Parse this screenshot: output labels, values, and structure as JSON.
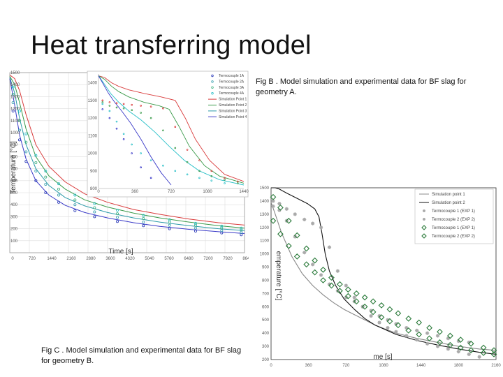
{
  "slide": {
    "title": "Heat transferring model",
    "caption_b": "Fig B . Model simulation and experimental data for BF slag for geometry A.",
    "caption_c": "Fig C . Model simulation and experimental data for BF slag for geometry B."
  },
  "chart_data": [
    {
      "id": "fig-c-geometry-b",
      "type": "line",
      "title": "",
      "xlabel": "Time [s]",
      "ylabel": "Temperature [°C]",
      "xlim": [
        0,
        7200
      ],
      "ylim": [
        0,
        1500
      ],
      "xticks": [
        "0",
        "720",
        "1440",
        "2160",
        "2880",
        "3600",
        "4320",
        "5040",
        "5760",
        "6480",
        "7200",
        "7920",
        "8640"
      ],
      "yticks": [
        "100",
        "200",
        "300",
        "400",
        "500",
        "600",
        "700",
        "800",
        "900",
        "1000",
        "1100",
        "1200",
        "1300",
        "1400",
        "1500"
      ],
      "grid": true,
      "legend_position": "top-right",
      "series": [
        {
          "name": "Simulation Point 1",
          "color": "#d93b3b",
          "style": "line",
          "x": [
            0,
            150,
            300,
            500,
            800,
            1200,
            1700,
            2300,
            3000,
            3800,
            4600,
            5500,
            6400,
            7200
          ],
          "y": [
            1480,
            1450,
            1350,
            1150,
            900,
            720,
            590,
            490,
            420,
            360,
            320,
            280,
            250,
            230
          ]
        },
        {
          "name": "Simulation Point 2",
          "color": "#3a9a4a",
          "style": "line",
          "x": [
            0,
            150,
            300,
            500,
            800,
            1200,
            1700,
            2300,
            3000,
            3800,
            4600,
            5500,
            6400,
            7200
          ],
          "y": [
            1470,
            1400,
            1250,
            1030,
            800,
            640,
            530,
            440,
            380,
            330,
            290,
            255,
            225,
            205
          ]
        },
        {
          "name": "Simulation Point 3",
          "color": "#2a9aa8",
          "style": "line",
          "x": [
            0,
            150,
            300,
            500,
            800,
            1200,
            1700,
            2300,
            3000,
            3800,
            4600,
            5500,
            6400,
            7200
          ],
          "y": [
            1460,
            1330,
            1120,
            900,
            700,
            560,
            460,
            390,
            335,
            290,
            255,
            225,
            200,
            185
          ]
        },
        {
          "name": "Simulation Point 4",
          "color": "#3a3ac8",
          "style": "line",
          "x": [
            0,
            150,
            300,
            500,
            800,
            1200,
            1700,
            2300,
            3000,
            3800,
            4600,
            5500,
            6400,
            7200
          ],
          "y": [
            1450,
            1230,
            980,
            780,
            600,
            480,
            395,
            335,
            290,
            250,
            220,
            195,
            175,
            160
          ]
        },
        {
          "name": "Termocouple 1A",
          "color": "#2a3ab8",
          "style": "marker",
          "x": [
            100,
            300,
            500,
            800,
            1100,
            1500,
            2000,
            2600,
            3300,
            4100,
            4900,
            5700,
            6500,
            7100
          ],
          "y": [
            1180,
            940,
            760,
            600,
            500,
            420,
            350,
            300,
            260,
            225,
            200,
            180,
            165,
            150
          ]
        },
        {
          "name": "Termocouple 2A",
          "color": "#3aa0b0",
          "style": "marker",
          "x": [
            100,
            300,
            500,
            800,
            1100,
            1500,
            2000,
            2600,
            3300,
            4100,
            4900,
            5700,
            6500,
            7100
          ],
          "y": [
            1250,
            1020,
            840,
            680,
            570,
            480,
            400,
            340,
            295,
            255,
            228,
            205,
            185,
            170
          ]
        },
        {
          "name": "Termocouple 3A",
          "color": "#40b080",
          "style": "marker",
          "x": [
            100,
            300,
            500,
            800,
            1100,
            1500,
            2000,
            2600,
            3300,
            4100,
            4900,
            5700,
            6500,
            7100
          ],
          "y": [
            1320,
            1100,
            920,
            750,
            630,
            530,
            440,
            375,
            325,
            285,
            255,
            230,
            208,
            190
          ]
        },
        {
          "name": "Termocouple 4A",
          "color": "#2ac0c8",
          "style": "marker",
          "x": [
            100,
            300,
            500,
            800,
            1100,
            1500,
            2000,
            2600,
            3300,
            4100,
            4900,
            5700,
            6500,
            7100
          ],
          "y": [
            1380,
            1180,
            990,
            810,
            680,
            575,
            480,
            410,
            355,
            310,
            275,
            245,
            222,
            205
          ]
        }
      ],
      "inset": {
        "xlim": [
          0,
          1440
        ],
        "ylim": [
          800,
          1450
        ],
        "xticks": [
          "0",
          "360",
          "720",
          "1080",
          "1440"
        ],
        "yticks": [
          "800",
          "900",
          "1000",
          "1100",
          "1200",
          "1300",
          "1400"
        ],
        "series": [
          {
            "name": "Simulation Point 1",
            "color": "#d93b3b",
            "x": [
              0,
              60,
              130,
              200,
              300,
              450,
              620,
              760,
              860,
              960,
              1100,
              1250,
              1440
            ],
            "y": [
              1440,
              1430,
              1400,
              1380,
              1360,
              1340,
              1320,
              1300,
              1200,
              1080,
              960,
              880,
              840
            ]
          },
          {
            "name": "Simulation Point 2",
            "color": "#3a9a4a",
            "x": [
              0,
              60,
              130,
              200,
              300,
              450,
              600,
              700,
              800,
              900,
              1050,
              1200,
              1440
            ],
            "y": [
              1440,
              1420,
              1380,
              1350,
              1320,
              1290,
              1270,
              1250,
              1150,
              1040,
              930,
              870,
              830
            ]
          },
          {
            "name": "Simulation Point 3",
            "color": "#2ac0c8",
            "x": [
              0,
              50,
              120,
              200,
              300,
              420,
              560,
              700,
              850,
              1000,
              1200,
              1440
            ],
            "y": [
              1440,
              1400,
              1340,
              1290,
              1240,
              1190,
              1120,
              1040,
              960,
              900,
              850,
              820
            ]
          },
          {
            "name": "Simulation Point 4",
            "color": "#3a3ac8",
            "x": [
              0,
              40,
              100,
              160,
              230,
              320,
              420,
              520,
              620,
              720
            ],
            "y": [
              1440,
              1400,
              1340,
              1290,
              1240,
              1170,
              1080,
              980,
              890,
              820
            ]
          },
          {
            "name": "Termocouple 1A",
            "color": "#d93b3b",
            "marker": true,
            "x": [
              40,
              110,
              180,
              250,
              330,
              420,
              520,
              640,
              760,
              880,
              1000,
              1120,
              1250,
              1380
            ],
            "y": [
              1300,
              1290,
              1285,
              1280,
              1275,
              1270,
              1265,
              1255,
              1150,
              1020,
              960,
              900,
              860,
              840
            ]
          },
          {
            "name": "Termocouple 2A",
            "color": "#3a9a4a",
            "marker": true,
            "x": [
              40,
              110,
              180,
              250,
              330,
              420,
              520,
              640,
              760,
              880,
              1000,
              1120,
              1250,
              1380
            ],
            "y": [
              1290,
              1270,
              1260,
              1255,
              1245,
              1230,
              1200,
              1130,
              1030,
              950,
              900,
              870,
              850,
              830
            ]
          },
          {
            "name": "Termocouple 3A",
            "color": "#2ac0c8",
            "marker": true,
            "x": [
              40,
              110,
              180,
              250,
              330,
              420,
              520,
              640,
              760,
              880,
              1000,
              1120,
              1250
            ],
            "y": [
              1280,
              1240,
              1180,
              1110,
              1050,
              1000,
              960,
              930,
              900,
              880,
              860,
              845,
              830
            ]
          },
          {
            "name": "Termocouple 4A",
            "color": "#3a3ac8",
            "marker": true,
            "x": [
              40,
              110,
              180,
              250,
              330,
              420,
              520
            ],
            "y": [
              1250,
              1200,
              1140,
              1080,
              1000,
              920,
              860
            ]
          }
        ]
      }
    },
    {
      "id": "fig-b-geometry-a",
      "type": "line",
      "title": "",
      "xlabel": "me [s]",
      "ylabel": "emperature [°C]",
      "xlim": [
        0,
        2160
      ],
      "ylim": [
        200,
        1500
      ],
      "xticks": [
        "0",
        "360",
        "720",
        "1080",
        "1440",
        "1800",
        "2160"
      ],
      "yticks": [
        "200",
        "300",
        "400",
        "500",
        "600",
        "700",
        "800",
        "900",
        "1000",
        "1100",
        "1200",
        "1300",
        "1400",
        "1500"
      ],
      "grid": false,
      "legend_position": "top-right",
      "series": [
        {
          "name": "Simulation point 1",
          "color": "#888888",
          "style": "line",
          "x": [
            0,
            40,
            100,
            200,
            300,
            400,
            500,
            600,
            700,
            800,
            900,
            1000,
            1100,
            1200,
            1400,
            1600,
            1800,
            2000,
            2160
          ],
          "y": [
            1390,
            1300,
            1160,
            980,
            850,
            760,
            690,
            630,
            580,
            540,
            500,
            460,
            430,
            400,
            360,
            330,
            300,
            280,
            270
          ]
        },
        {
          "name": "Simulation point 2",
          "color": "#111111",
          "style": "line",
          "x": [
            0,
            40,
            80,
            150,
            250,
            350,
            420,
            460,
            490,
            520,
            560,
            620,
            700,
            800,
            900,
            1000,
            1200,
            1400,
            1600,
            1800,
            2000,
            2160
          ],
          "y": [
            1500,
            1500,
            1490,
            1460,
            1420,
            1380,
            1340,
            1280,
            1150,
            1000,
            870,
            760,
            660,
            580,
            510,
            460,
            390,
            345,
            310,
            280,
            255,
            240
          ]
        },
        {
          "name": "Termocouple 1 (EXP 1)",
          "color": "#aaaaaa",
          "style": "star",
          "x": [
            20,
            80,
            150,
            230,
            320,
            400,
            480,
            560,
            640,
            720,
            800,
            880,
            960,
            1040,
            1120,
            1200,
            1300,
            1400,
            1500,
            1600,
            1700,
            1800,
            1900
          ],
          "y": [
            1360,
            1330,
            1250,
            1130,
            1010,
            920,
            840,
            770,
            720,
            670,
            640,
            600,
            570,
            530,
            500,
            470,
            440,
            420,
            400,
            380,
            360,
            340,
            330
          ]
        },
        {
          "name": "Termocouple 2 (EXP 2)",
          "color": "#aaaaaa",
          "style": "star",
          "x": [
            20,
            80,
            150,
            230,
            320,
            400,
            480,
            560,
            640,
            720,
            800,
            880,
            960,
            1040,
            1120,
            1200,
            1300,
            1400,
            1500,
            1600,
            1700,
            1800,
            1900,
            2000
          ],
          "y": [
            1400,
            1380,
            1340,
            1300,
            1260,
            1230,
            1200,
            1050,
            870,
            760,
            670,
            600,
            530,
            480,
            440,
            410,
            380,
            350,
            320,
            300,
            280,
            260,
            240,
            220
          ]
        },
        {
          "name": "Termocouple 1 (EXP 1)",
          "color": "#2a7a3a",
          "style": "diamond",
          "x": [
            20,
            90,
            170,
            250,
            340,
            420,
            500,
            580,
            660,
            740,
            820,
            900,
            980,
            1060,
            1140,
            1220,
            1320,
            1420,
            1520,
            1620,
            1720,
            1820,
            1920,
            2040,
            2140
          ],
          "y": [
            1430,
            1350,
            1250,
            1140,
            1040,
            950,
            880,
            820,
            770,
            730,
            700,
            670,
            640,
            610,
            580,
            550,
            510,
            480,
            440,
            410,
            380,
            350,
            320,
            290,
            270
          ]
        },
        {
          "name": "Termocouple 2 (EXP 2)",
          "color": "#2a7a3a",
          "style": "diamond",
          "x": [
            20,
            90,
            170,
            250,
            340,
            420,
            500,
            580,
            660,
            740,
            820,
            900,
            980,
            1060,
            1140,
            1220,
            1320,
            1420,
            1520,
            1620,
            1720,
            1820,
            1920,
            2040,
            2140
          ],
          "y": [
            1250,
            1150,
            1060,
            980,
            920,
            860,
            800,
            760,
            720,
            680,
            640,
            600,
            560,
            520,
            490,
            460,
            420,
            390,
            360,
            330,
            310,
            290,
            270,
            250,
            240
          ]
        }
      ]
    }
  ]
}
